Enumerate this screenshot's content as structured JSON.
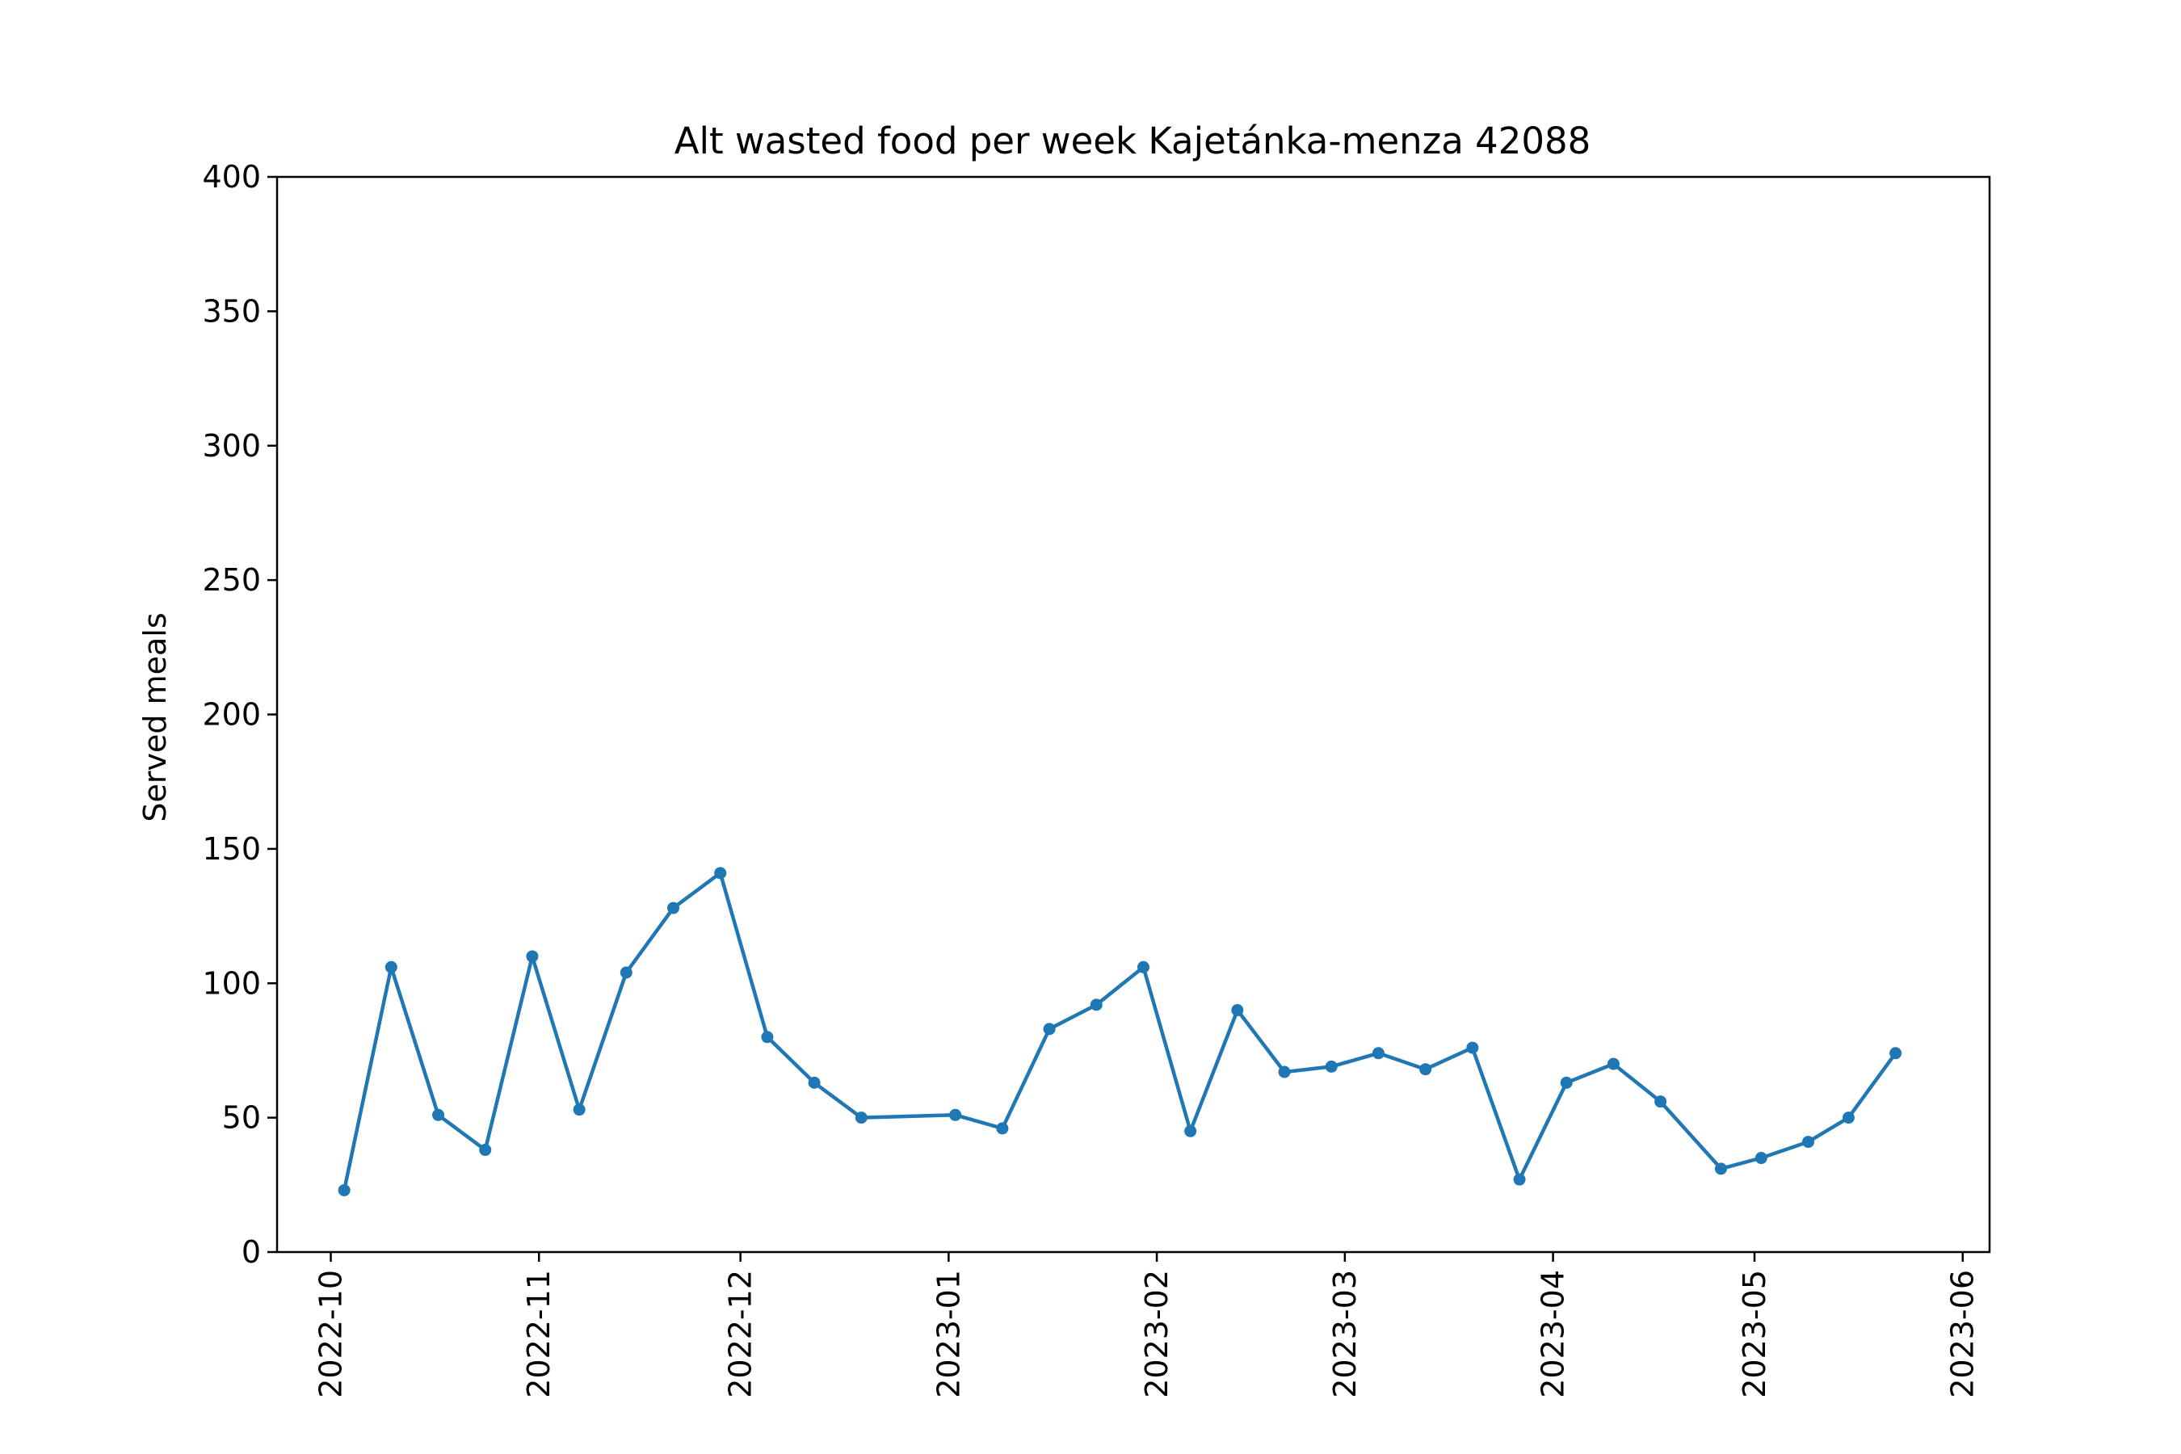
{
  "chart_data": {
    "type": "line",
    "title": "Alt wasted food per week Kajetánka-menza 42088",
    "xlabel": "",
    "ylabel": "Served meals",
    "ylim": [
      0,
      400
    ],
    "yticks": [
      0,
      50,
      100,
      150,
      200,
      250,
      300,
      350,
      400
    ],
    "xlim": [
      "2022-09-23",
      "2023-06-05"
    ],
    "xticks": [
      "2022-10",
      "2022-11",
      "2022-12",
      "2023-01",
      "2023-02",
      "2023-03",
      "2023-04",
      "2023-05",
      "2023-06"
    ],
    "grid": false,
    "legend": "none",
    "color": "#1f77b4",
    "marker": "circle",
    "series": [
      {
        "x": [
          "2022-10-03",
          "2022-10-10",
          "2022-10-17",
          "2022-10-24",
          "2022-10-31",
          "2022-11-07",
          "2022-11-14",
          "2022-11-21",
          "2022-11-28",
          "2022-12-05",
          "2022-12-12",
          "2022-12-19",
          "2023-01-02",
          "2023-01-09",
          "2023-01-16",
          "2023-01-23",
          "2023-01-30",
          "2023-02-06",
          "2023-02-13",
          "2023-02-20",
          "2023-02-27",
          "2023-03-06",
          "2023-03-13",
          "2023-03-20",
          "2023-03-27",
          "2023-04-03",
          "2023-04-10",
          "2023-04-17",
          "2023-04-26",
          "2023-05-02",
          "2023-05-09",
          "2023-05-15",
          "2023-05-22"
        ],
        "values": [
          23,
          106,
          51,
          38,
          110,
          53,
          104,
          128,
          141,
          80,
          63,
          50,
          51,
          46,
          83,
          92,
          106,
          45,
          90,
          67,
          69,
          74,
          68,
          76,
          27,
          63,
          70,
          56,
          31,
          35,
          41,
          50,
          74
        ]
      }
    ]
  }
}
